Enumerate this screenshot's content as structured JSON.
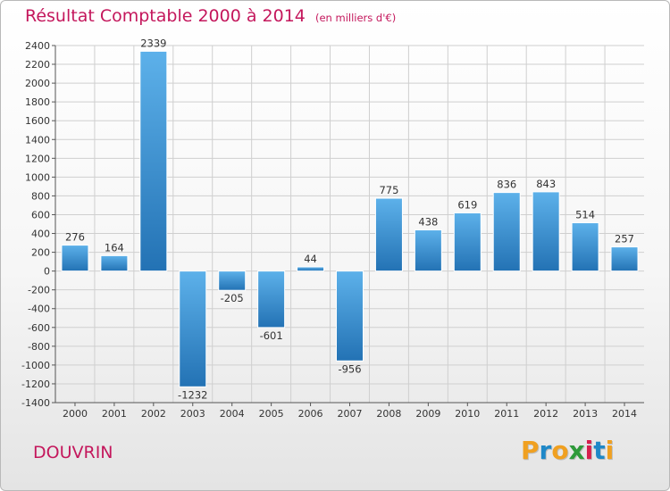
{
  "header": {
    "title": "Résultat Comptable 2000 à 2014",
    "unit": "(en milliers d'€)"
  },
  "footer": {
    "place": "DOUVRIN",
    "logo_letters": [
      "P",
      "r",
      "o",
      "x",
      "i",
      "t",
      "i"
    ],
    "logo_colors": [
      "#f0a020",
      "#1e88c8",
      "#f0a020",
      "#2e9a3a",
      "#d6204e",
      "#1e88c8",
      "#f0a020"
    ]
  },
  "chart_data": {
    "type": "bar",
    "categories": [
      "2000",
      "2001",
      "2002",
      "2003",
      "2004",
      "2005",
      "2006",
      "2007",
      "2008",
      "2009",
      "2010",
      "2011",
      "2012",
      "2013",
      "2014"
    ],
    "values": [
      276,
      164,
      2339,
      -1232,
      -205,
      -601,
      44,
      -956,
      775,
      438,
      619,
      836,
      843,
      514,
      257
    ],
    "title": "Résultat Comptable 2000 à 2014",
    "xlabel": "",
    "ylabel": "",
    "ylim": [
      -1400,
      2400
    ],
    "yticks": [
      2400,
      2200,
      2000,
      1800,
      1600,
      1400,
      1200,
      1000,
      800,
      600,
      400,
      200,
      0,
      -200,
      -400,
      -600,
      -800,
      -1000,
      -1200,
      -1400
    ],
    "grid": true,
    "colors": {
      "bar_light": "#5db1ea",
      "bar_dark": "#2372b4",
      "grid": "#cfcfcf",
      "axis": "#555555",
      "text": "#333333"
    }
  }
}
